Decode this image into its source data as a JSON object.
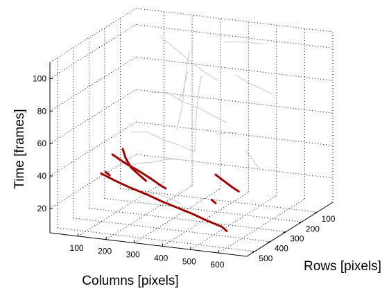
{
  "chart_data": {
    "type": "line3d",
    "zlabel": "Time [frames]",
    "xlabel": "Columns [pixels]",
    "ylabel": "Rows [pixels]",
    "x_ticks": [
      100,
      200,
      300,
      400,
      500,
      600
    ],
    "y_ticks": [
      100,
      200,
      300,
      400,
      500
    ],
    "z_ticks": [
      20,
      40,
      60,
      80,
      100
    ],
    "xlim": [
      0,
      700
    ],
    "ylim": [
      0,
      550
    ],
    "zlim": [
      5,
      110
    ],
    "grid": true,
    "colors": {
      "background_tracks": "#c8c8c8",
      "highlighted_tracks": "#a00000"
    },
    "background_tracks": [
      [
        [
          130,
          80,
          100
        ],
        [
          180,
          85,
          95
        ],
        [
          230,
          80,
          88
        ],
        [
          290,
          85,
          82
        ],
        [
          340,
          90,
          78
        ]
      ],
      [
        [
          140,
          150,
          70
        ],
        [
          200,
          160,
          72
        ],
        [
          260,
          170,
          68
        ],
        [
          320,
          175,
          66
        ],
        [
          380,
          180,
          62
        ],
        [
          430,
          190,
          60
        ]
      ],
      [
        [
          150,
          300,
          55
        ],
        [
          210,
          310,
          57
        ],
        [
          270,
          315,
          54
        ],
        [
          330,
          320,
          52
        ],
        [
          390,
          330,
          50
        ]
      ],
      [
        [
          200,
          100,
          45
        ],
        [
          230,
          120,
          60
        ],
        [
          250,
          140,
          75
        ],
        [
          270,
          160,
          90
        ],
        [
          290,
          180,
          100
        ]
      ],
      [
        [
          320,
          200,
          40
        ],
        [
          340,
          230,
          55
        ],
        [
          360,
          260,
          70
        ],
        [
          380,
          280,
          85
        ],
        [
          400,
          300,
          95
        ]
      ],
      [
        [
          100,
          250,
          30
        ],
        [
          150,
          255,
          33
        ],
        [
          200,
          260,
          35
        ],
        [
          250,
          268,
          38
        ],
        [
          300,
          275,
          40
        ]
      ],
      [
        [
          420,
          120,
          85
        ],
        [
          470,
          130,
          82
        ],
        [
          520,
          140,
          80
        ],
        [
          570,
          150,
          78
        ]
      ],
      [
        [
          450,
          300,
          60
        ],
        [
          480,
          320,
          62
        ],
        [
          520,
          340,
          65
        ],
        [
          560,
          350,
          66
        ]
      ],
      [
        [
          250,
          400,
          25
        ],
        [
          300,
          410,
          27
        ],
        [
          350,
          420,
          26
        ],
        [
          400,
          430,
          24
        ]
      ],
      [
        [
          500,
          200,
          45
        ],
        [
          530,
          220,
          43
        ],
        [
          560,
          240,
          40
        ],
        [
          590,
          260,
          38
        ]
      ],
      [
        [
          180,
          50,
          60
        ],
        [
          200,
          60,
          66
        ],
        [
          220,
          80,
          74
        ],
        [
          240,
          100,
          82
        ]
      ],
      [
        [
          350,
          60,
          100
        ],
        [
          400,
          70,
          102
        ],
        [
          450,
          80,
          103
        ],
        [
          500,
          90,
          104
        ]
      ]
    ],
    "highlighted_tracks": [
      [
        [
          110,
          420,
          36
        ],
        [
          170,
          440,
          34
        ],
        [
          230,
          455,
          32
        ],
        [
          300,
          470,
          30
        ],
        [
          360,
          485,
          28
        ],
        [
          420,
          495,
          26
        ],
        [
          480,
          505,
          24
        ],
        [
          540,
          520,
          22
        ],
        [
          600,
          530,
          20
        ],
        [
          620,
          535,
          18
        ]
      ],
      [
        [
          100,
          330,
          42
        ],
        [
          150,
          345,
          39
        ],
        [
          210,
          360,
          36
        ],
        [
          260,
          372,
          33
        ],
        [
          300,
          380,
          30
        ],
        [
          320,
          385,
          29
        ]
      ],
      [
        [
          120,
          300,
          44
        ],
        [
          140,
          318,
          40
        ],
        [
          170,
          338,
          36
        ],
        [
          210,
          355,
          33
        ],
        [
          240,
          368,
          31
        ]
      ],
      [
        [
          450,
          300,
          35
        ],
        [
          490,
          318,
          33
        ],
        [
          530,
          336,
          31
        ],
        [
          560,
          350,
          30
        ]
      ],
      [
        [
          70,
          320,
          30
        ],
        [
          90,
          330,
          29
        ]
      ],
      [
        [
          480,
          380,
          25
        ],
        [
          500,
          390,
          24
        ]
      ]
    ]
  }
}
